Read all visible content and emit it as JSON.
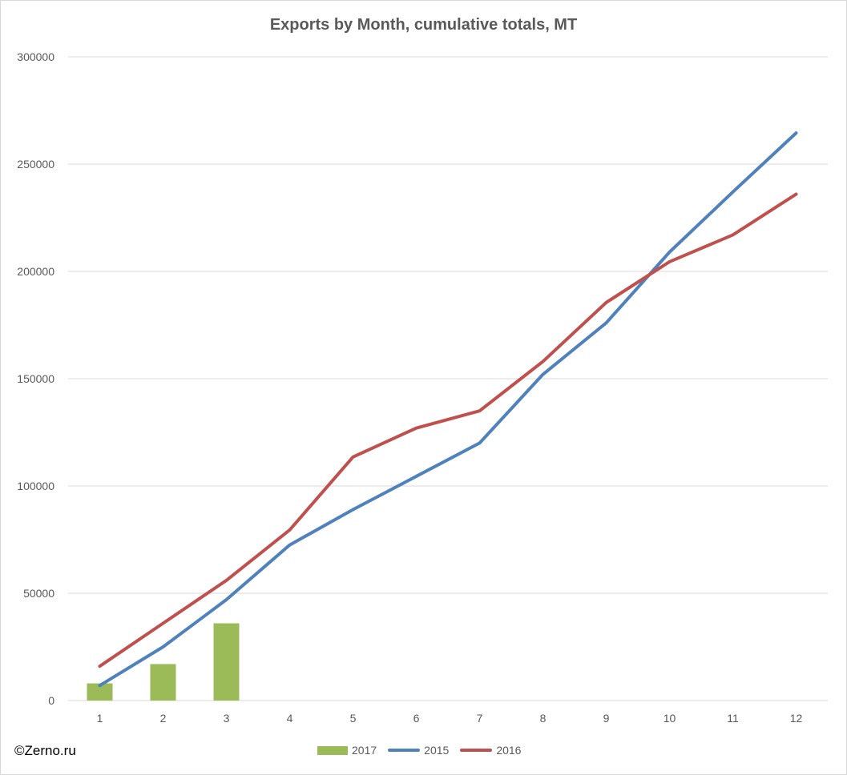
{
  "chart_data": {
    "type": "line",
    "title": "Exports by Month, cumulative totals, MT",
    "xlabel": "",
    "ylabel": "",
    "categories": [
      "1",
      "2",
      "3",
      "4",
      "5",
      "6",
      "7",
      "8",
      "9",
      "10",
      "11",
      "12"
    ],
    "ylim": [
      0,
      300000
    ],
    "yticks": [
      "0",
      "50000",
      "100000",
      "150000",
      "200000",
      "250000",
      "300000"
    ],
    "grid": "horizontal",
    "legend_position": "bottom",
    "series": [
      {
        "name": "2017",
        "kind": "bar",
        "color": "#9bbb59",
        "values": [
          8000,
          17000,
          36000,
          null,
          null,
          null,
          null,
          null,
          null,
          null,
          null,
          null
        ]
      },
      {
        "name": "2015",
        "kind": "line",
        "color": "#4f81bd",
        "values": [
          7000,
          25000,
          47000,
          72500,
          89000,
          104500,
          120000,
          152000,
          176000,
          209000,
          237000,
          264500
        ]
      },
      {
        "name": "2016",
        "kind": "line",
        "color": "#c0504d",
        "values": [
          16000,
          36000,
          56000,
          79500,
          113500,
          127000,
          135000,
          158000,
          185500,
          204500,
          217000,
          236000
        ]
      }
    ]
  },
  "footer": {
    "copyright": "©Zerno.ru"
  }
}
